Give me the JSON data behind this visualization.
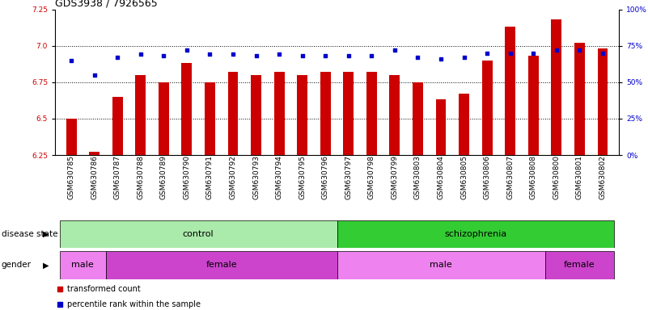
{
  "title": "GDS3938 / 7926565",
  "samples": [
    "GSM630785",
    "GSM630786",
    "GSM630787",
    "GSM630788",
    "GSM630789",
    "GSM630790",
    "GSM630791",
    "GSM630792",
    "GSM630793",
    "GSM630794",
    "GSM630795",
    "GSM630796",
    "GSM630797",
    "GSM630798",
    "GSM630799",
    "GSM630803",
    "GSM630804",
    "GSM630805",
    "GSM630806",
    "GSM630807",
    "GSM630808",
    "GSM630800",
    "GSM630801",
    "GSM630802"
  ],
  "bar_values": [
    6.5,
    6.27,
    6.65,
    6.8,
    6.75,
    6.88,
    6.75,
    6.82,
    6.8,
    6.82,
    6.8,
    6.82,
    6.82,
    6.82,
    6.8,
    6.75,
    6.63,
    6.67,
    6.9,
    7.13,
    6.93,
    7.18,
    7.02,
    6.98
  ],
  "dot_values": [
    65,
    55,
    67,
    69,
    68,
    72,
    69,
    69,
    68,
    69,
    68,
    68,
    68,
    68,
    72,
    67,
    66,
    67,
    70,
    70,
    70,
    72,
    72,
    70
  ],
  "disease_state_groups": [
    {
      "label": "control",
      "start": 0,
      "end": 12,
      "color": "#aaeaaa"
    },
    {
      "label": "schizophrenia",
      "start": 12,
      "end": 24,
      "color": "#33cc33"
    }
  ],
  "gender_groups": [
    {
      "label": "male",
      "start": 0,
      "end": 2,
      "color": "#ee82ee"
    },
    {
      "label": "female",
      "start": 2,
      "end": 12,
      "color": "#cc44cc"
    },
    {
      "label": "male",
      "start": 12,
      "end": 21,
      "color": "#ee82ee"
    },
    {
      "label": "female",
      "start": 21,
      "end": 24,
      "color": "#cc44cc"
    }
  ],
  "ylim_left": [
    6.25,
    7.25
  ],
  "ylim_right": [
    0,
    100
  ],
  "yticks_left": [
    6.25,
    6.5,
    6.75,
    7.0,
    7.25
  ],
  "yticks_right": [
    0,
    25,
    50,
    75,
    100
  ],
  "ytick_labels_right": [
    "0%",
    "25%",
    "50%",
    "75%",
    "100%"
  ],
  "bar_color": "#cc0000",
  "dot_color": "#0000cc",
  "bg_color": "#ffffff",
  "title_fontsize": 9,
  "tick_fontsize": 6.5,
  "label_fontsize": 8,
  "row_label_fontsize": 7.5,
  "legend_fontsize": 7
}
